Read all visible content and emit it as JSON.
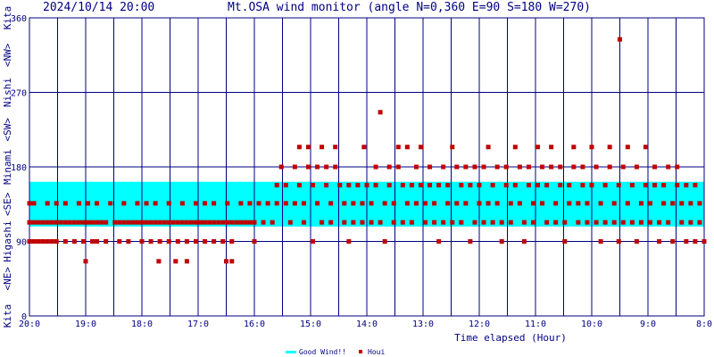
{
  "header": {
    "timestamp": "2024/10/14 20:00",
    "title": "Mt.OSA wind monitor (angle N=0,360 E=90 S=180 W=270)"
  },
  "colors": {
    "background": "#ffffff",
    "frame": "#000080",
    "good_band": "#00ffff",
    "points": "#c00000",
    "text": "#000080"
  },
  "chart_data": {
    "type": "scatter",
    "xlabel": "Time elapsed (Hour)",
    "x_tick_labels": [
      "20:0",
      "19:0",
      "18:0",
      "17:0",
      "16:0",
      "15:0",
      "14:0",
      "13:0",
      "12:0",
      "11:0",
      "10:0",
      "9:0",
      "8:0"
    ],
    "x_range_hours": [
      0,
      12
    ],
    "y_tick_labels": [
      "0",
      "90",
      "180",
      "270",
      "360"
    ],
    "ylim": [
      0,
      360
    ],
    "direction_labels": [
      "Kita",
      "<NE>",
      "Higashi",
      "<SE>",
      "Minami",
      "<SW>",
      "Nishi",
      "<NW>",
      "Kita"
    ],
    "good_wind_band": [
      108,
      162
    ],
    "legend": [
      {
        "name": "Good Wind!!",
        "color": "#00ffff"
      },
      {
        "name": "Houi",
        "color": "#c00000"
      }
    ],
    "grid": true,
    "series_name": "Houi",
    "points_note": "x = hours elapsed, y = wind direction in degrees",
    "points": [
      [
        0.0,
        90
      ],
      [
        0.0,
        113
      ],
      [
        0.0,
        136
      ],
      [
        0.08,
        90
      ],
      [
        0.08,
        113
      ],
      [
        0.08,
        136
      ],
      [
        0.16,
        90
      ],
      [
        0.16,
        113
      ],
      [
        0.24,
        90
      ],
      [
        0.24,
        113
      ],
      [
        0.32,
        90
      ],
      [
        0.32,
        113
      ],
      [
        0.32,
        136
      ],
      [
        0.4,
        90
      ],
      [
        0.4,
        113
      ],
      [
        0.48,
        90
      ],
      [
        0.48,
        113
      ],
      [
        0.48,
        136
      ],
      [
        0.56,
        113
      ],
      [
        0.64,
        90
      ],
      [
        0.64,
        113
      ],
      [
        0.64,
        136
      ],
      [
        0.72,
        113
      ],
      [
        0.8,
        90
      ],
      [
        0.8,
        113
      ],
      [
        0.88,
        113
      ],
      [
        0.88,
        136
      ],
      [
        0.96,
        90
      ],
      [
        0.96,
        113
      ],
      [
        1.0,
        66
      ],
      [
        1.04,
        113
      ],
      [
        1.04,
        136
      ],
      [
        1.12,
        90
      ],
      [
        1.12,
        113
      ],
      [
        1.2,
        90
      ],
      [
        1.2,
        113
      ],
      [
        1.2,
        136
      ],
      [
        1.28,
        113
      ],
      [
        1.36,
        90
      ],
      [
        1.36,
        113
      ],
      [
        1.44,
        136
      ],
      [
        1.52,
        113
      ],
      [
        1.6,
        90
      ],
      [
        1.6,
        113
      ],
      [
        1.68,
        113
      ],
      [
        1.68,
        136
      ],
      [
        1.76,
        90
      ],
      [
        1.76,
        113
      ],
      [
        1.84,
        113
      ],
      [
        1.92,
        113
      ],
      [
        1.92,
        136
      ],
      [
        2.0,
        90
      ],
      [
        2.0,
        113
      ],
      [
        2.08,
        113
      ],
      [
        2.08,
        136
      ],
      [
        2.16,
        90
      ],
      [
        2.16,
        113
      ],
      [
        2.24,
        113
      ],
      [
        2.24,
        136
      ],
      [
        2.3,
        66
      ],
      [
        2.32,
        90
      ],
      [
        2.32,
        113
      ],
      [
        2.4,
        113
      ],
      [
        2.48,
        90
      ],
      [
        2.48,
        113
      ],
      [
        2.48,
        136
      ],
      [
        2.56,
        113
      ],
      [
        2.6,
        66
      ],
      [
        2.64,
        90
      ],
      [
        2.64,
        113
      ],
      [
        2.72,
        113
      ],
      [
        2.72,
        136
      ],
      [
        2.8,
        66
      ],
      [
        2.8,
        90
      ],
      [
        2.8,
        113
      ],
      [
        2.88,
        113
      ],
      [
        2.96,
        90
      ],
      [
        2.96,
        113
      ],
      [
        2.96,
        136
      ],
      [
        3.04,
        113
      ],
      [
        3.12,
        90
      ],
      [
        3.12,
        113
      ],
      [
        3.12,
        136
      ],
      [
        3.2,
        113
      ],
      [
        3.28,
        90
      ],
      [
        3.28,
        113
      ],
      [
        3.28,
        136
      ],
      [
        3.36,
        113
      ],
      [
        3.44,
        90
      ],
      [
        3.44,
        113
      ],
      [
        3.5,
        66
      ],
      [
        3.52,
        113
      ],
      [
        3.52,
        136
      ],
      [
        3.6,
        90
      ],
      [
        3.6,
        113
      ],
      [
        3.6,
        66
      ],
      [
        3.68,
        113
      ],
      [
        3.76,
        113
      ],
      [
        3.76,
        136
      ],
      [
        3.84,
        113
      ],
      [
        3.92,
        113
      ],
      [
        3.92,
        136
      ],
      [
        4.0,
        113
      ],
      [
        4.0,
        90
      ],
      [
        4.08,
        136
      ],
      [
        4.16,
        113
      ],
      [
        4.24,
        136
      ],
      [
        4.32,
        113
      ],
      [
        4.4,
        136
      ],
      [
        4.4,
        158
      ],
      [
        4.48,
        180
      ],
      [
        4.56,
        136
      ],
      [
        4.56,
        158
      ],
      [
        4.64,
        113
      ],
      [
        4.72,
        136
      ],
      [
        4.72,
        180
      ],
      [
        4.8,
        158
      ],
      [
        4.8,
        204
      ],
      [
        4.88,
        113
      ],
      [
        4.88,
        136
      ],
      [
        4.96,
        180
      ],
      [
        4.96,
        204
      ],
      [
        5.04,
        158
      ],
      [
        5.04,
        90
      ],
      [
        5.12,
        136
      ],
      [
        5.12,
        180
      ],
      [
        5.2,
        204
      ],
      [
        5.2,
        113
      ],
      [
        5.28,
        158
      ],
      [
        5.28,
        180
      ],
      [
        5.36,
        136
      ],
      [
        5.36,
        113
      ],
      [
        5.44,
        180
      ],
      [
        5.44,
        204
      ],
      [
        5.52,
        158
      ],
      [
        5.6,
        113
      ],
      [
        5.6,
        136
      ],
      [
        5.68,
        158
      ],
      [
        5.68,
        90
      ],
      [
        5.76,
        136
      ],
      [
        5.76,
        113
      ],
      [
        5.84,
        158
      ],
      [
        5.92,
        113
      ],
      [
        5.92,
        136
      ],
      [
        5.95,
        204
      ],
      [
        6.0,
        158
      ],
      [
        6.08,
        136
      ],
      [
        6.08,
        113
      ],
      [
        6.16,
        180
      ],
      [
        6.16,
        158
      ],
      [
        6.24,
        246
      ],
      [
        6.24,
        113
      ],
      [
        6.32,
        136
      ],
      [
        6.32,
        90
      ],
      [
        6.4,
        158
      ],
      [
        6.4,
        180
      ],
      [
        6.48,
        113
      ],
      [
        6.48,
        136
      ],
      [
        6.56,
        204
      ],
      [
        6.56,
        180
      ],
      [
        6.64,
        158
      ],
      [
        6.64,
        113
      ],
      [
        6.72,
        204
      ],
      [
        6.72,
        136
      ],
      [
        6.8,
        158
      ],
      [
        6.8,
        113
      ],
      [
        6.88,
        180
      ],
      [
        6.88,
        136
      ],
      [
        6.96,
        158
      ],
      [
        6.96,
        204
      ],
      [
        7.04,
        113
      ],
      [
        7.04,
        136
      ],
      [
        7.12,
        158
      ],
      [
        7.12,
        180
      ],
      [
        7.2,
        113
      ],
      [
        7.2,
        136
      ],
      [
        7.28,
        158
      ],
      [
        7.28,
        90
      ],
      [
        7.36,
        180
      ],
      [
        7.36,
        113
      ],
      [
        7.44,
        136
      ],
      [
        7.44,
        158
      ],
      [
        7.52,
        204
      ],
      [
        7.52,
        113
      ],
      [
        7.6,
        180
      ],
      [
        7.6,
        136
      ],
      [
        7.68,
        158
      ],
      [
        7.68,
        113
      ],
      [
        7.76,
        180
      ],
      [
        7.76,
        136
      ],
      [
        7.84,
        158
      ],
      [
        7.84,
        90
      ],
      [
        7.92,
        113
      ],
      [
        7.92,
        180
      ],
      [
        8.0,
        136
      ],
      [
        8.0,
        158
      ],
      [
        8.08,
        113
      ],
      [
        8.08,
        180
      ],
      [
        8.16,
        204
      ],
      [
        8.16,
        136
      ],
      [
        8.24,
        158
      ],
      [
        8.24,
        113
      ],
      [
        8.32,
        180
      ],
      [
        8.32,
        136
      ],
      [
        8.4,
        113
      ],
      [
        8.4,
        90
      ],
      [
        8.48,
        158
      ],
      [
        8.48,
        180
      ],
      [
        8.56,
        136
      ],
      [
        8.56,
        113
      ],
      [
        8.64,
        204
      ],
      [
        8.64,
        158
      ],
      [
        8.72,
        180
      ],
      [
        8.72,
        136
      ],
      [
        8.8,
        113
      ],
      [
        8.8,
        90
      ],
      [
        8.88,
        158
      ],
      [
        8.88,
        180
      ],
      [
        8.96,
        136
      ],
      [
        8.96,
        113
      ],
      [
        9.04,
        158
      ],
      [
        9.04,
        204
      ],
      [
        9.12,
        180
      ],
      [
        9.12,
        136
      ],
      [
        9.2,
        113
      ],
      [
        9.2,
        158
      ],
      [
        9.28,
        180
      ],
      [
        9.28,
        204
      ],
      [
        9.36,
        136
      ],
      [
        9.36,
        113
      ],
      [
        9.44,
        158
      ],
      [
        9.44,
        180
      ],
      [
        9.52,
        113
      ],
      [
        9.52,
        90
      ],
      [
        9.6,
        136
      ],
      [
        9.6,
        158
      ],
      [
        9.68,
        180
      ],
      [
        9.68,
        204
      ],
      [
        9.76,
        113
      ],
      [
        9.76,
        136
      ],
      [
        9.84,
        158
      ],
      [
        9.84,
        180
      ],
      [
        9.92,
        113
      ],
      [
        9.92,
        136
      ],
      [
        10.0,
        204
      ],
      [
        10.0,
        158
      ],
      [
        10.08,
        180
      ],
      [
        10.08,
        113
      ],
      [
        10.16,
        136
      ],
      [
        10.16,
        90
      ],
      [
        10.24,
        158
      ],
      [
        10.24,
        113
      ],
      [
        10.32,
        180
      ],
      [
        10.32,
        204
      ],
      [
        10.4,
        136
      ],
      [
        10.4,
        113
      ],
      [
        10.48,
        158
      ],
      [
        10.48,
        90
      ],
      [
        10.5,
        334
      ],
      [
        10.56,
        113
      ],
      [
        10.56,
        180
      ],
      [
        10.64,
        136
      ],
      [
        10.64,
        204
      ],
      [
        10.72,
        158
      ],
      [
        10.72,
        113
      ],
      [
        10.8,
        90
      ],
      [
        10.8,
        180
      ],
      [
        10.88,
        136
      ],
      [
        10.88,
        113
      ],
      [
        10.96,
        158
      ],
      [
        10.96,
        204
      ],
      [
        11.04,
        113
      ],
      [
        11.04,
        136
      ],
      [
        11.12,
        158
      ],
      [
        11.12,
        180
      ],
      [
        11.2,
        113
      ],
      [
        11.2,
        90
      ],
      [
        11.28,
        136
      ],
      [
        11.28,
        158
      ],
      [
        11.36,
        180
      ],
      [
        11.36,
        113
      ],
      [
        11.44,
        136
      ],
      [
        11.44,
        90
      ],
      [
        11.52,
        158
      ],
      [
        11.52,
        180
      ],
      [
        11.6,
        113
      ],
      [
        11.6,
        136
      ],
      [
        11.68,
        158
      ],
      [
        11.68,
        90
      ],
      [
        11.76,
        113
      ],
      [
        11.76,
        136
      ],
      [
        11.84,
        158
      ],
      [
        11.84,
        90
      ],
      [
        11.92,
        113
      ],
      [
        11.92,
        136
      ],
      [
        12.0,
        90
      ]
    ]
  },
  "legend_good": "Good Wind!!",
  "legend_houi": "Houi"
}
